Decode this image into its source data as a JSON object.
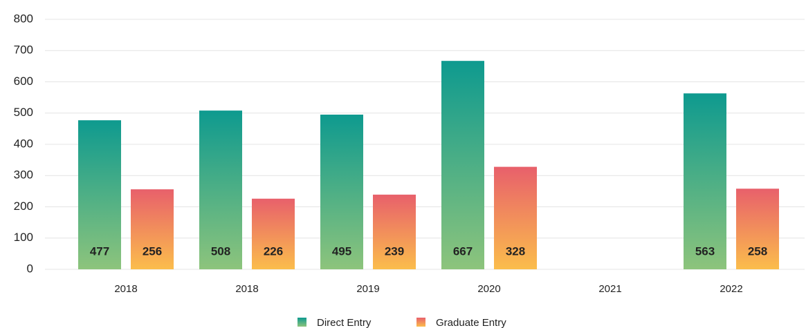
{
  "chart_data": {
    "type": "bar",
    "categories": [
      "2018",
      "2018",
      "2019",
      "2020",
      "2021",
      "2022"
    ],
    "series": [
      {
        "name": "Direct Entry",
        "color": [
          "#0e9a8f",
          "#8dc47c"
        ],
        "values": [
          477,
          508,
          495,
          667,
          null,
          563
        ]
      },
      {
        "name": "Graduate Entry",
        "color": [
          "#e8606b",
          "#fbbd4c"
        ],
        "values": [
          256,
          226,
          239,
          328,
          null,
          258
        ]
      }
    ],
    "ylim": [
      0,
      800
    ],
    "yticks": [
      0,
      100,
      200,
      300,
      400,
      500,
      600,
      700,
      800
    ],
    "grid": true,
    "legend": "bottom"
  }
}
